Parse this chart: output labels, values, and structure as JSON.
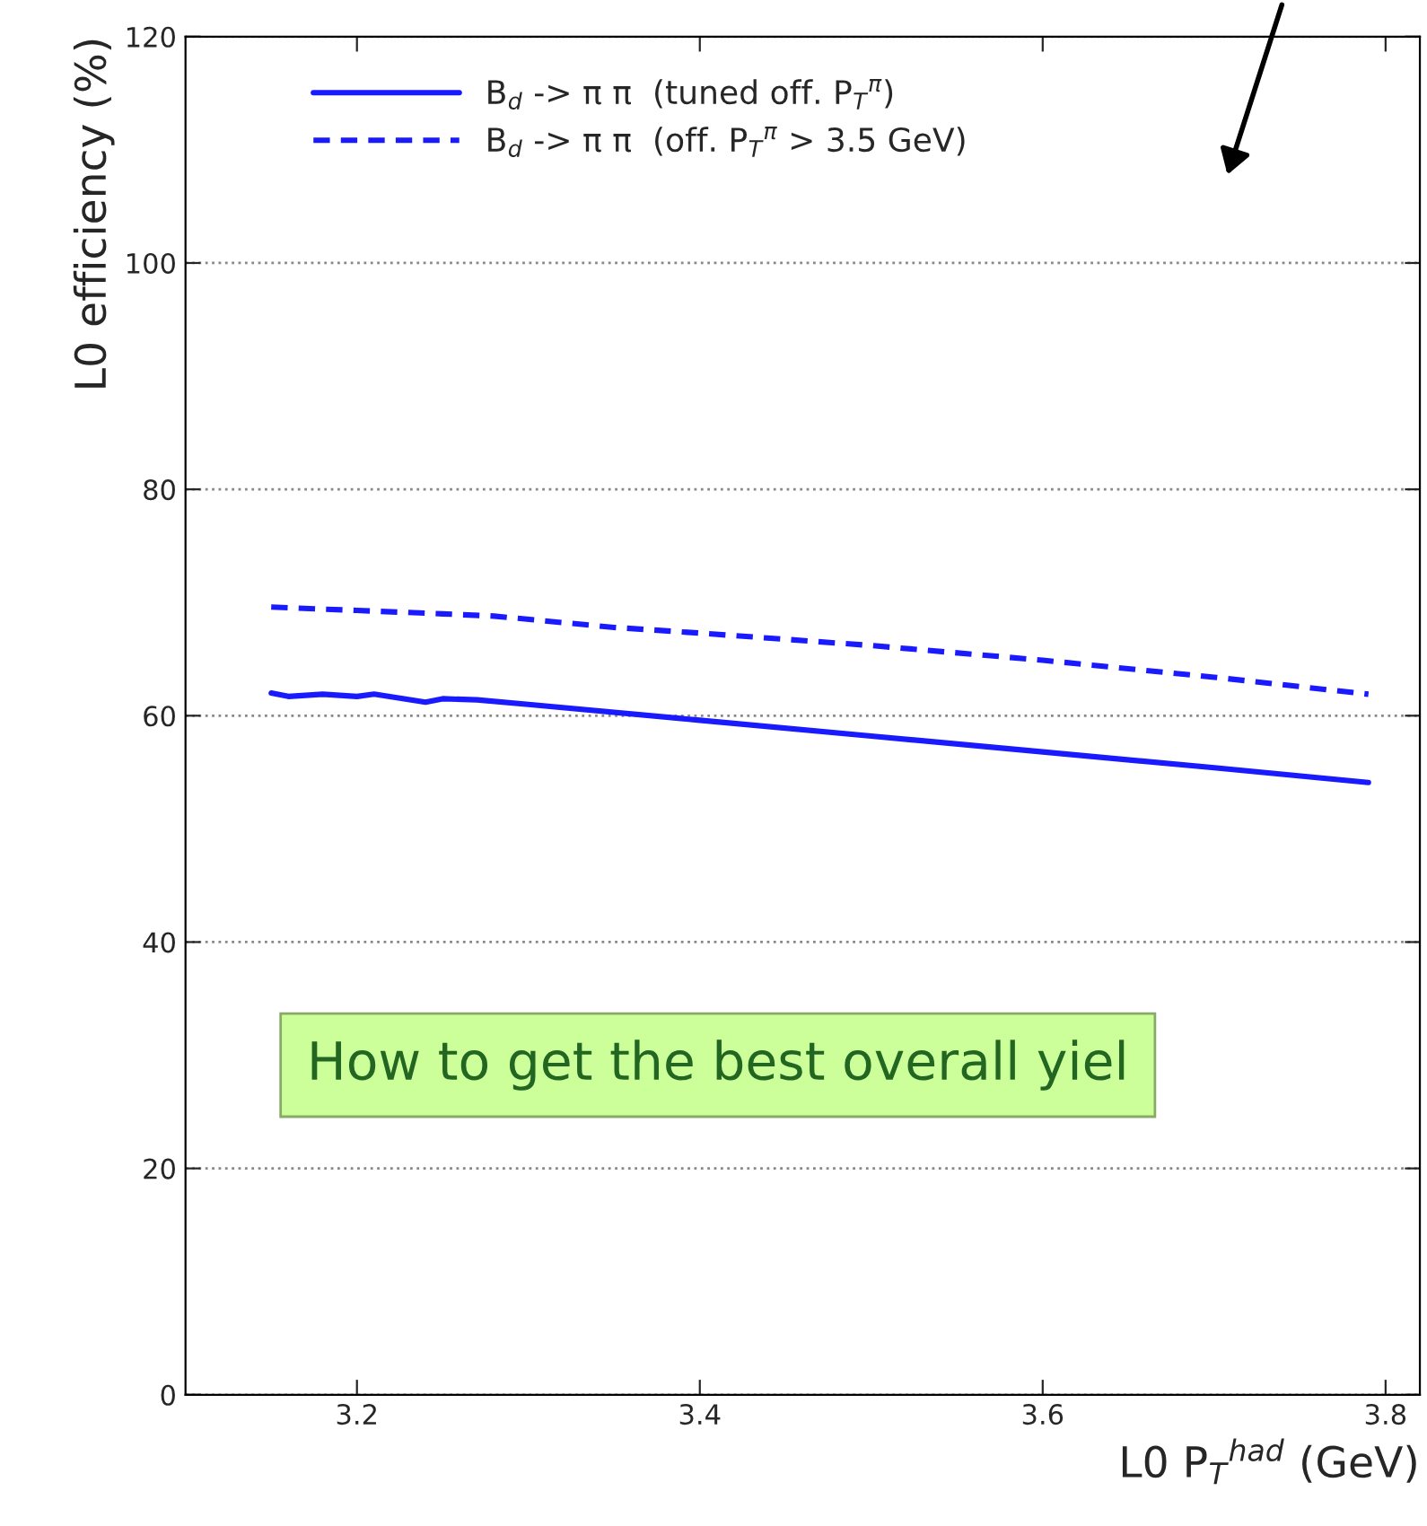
{
  "chart_data": {
    "type": "line",
    "xlabel": "L0 P$_{T}$$^{had}$ (GeV)",
    "ylabel": "L0 efficiency (%)",
    "series": [
      {
        "name": "B$_{d}$ -> π π  (tuned off. P$_{T}$$^{π}$)",
        "color": "#1a1aff",
        "line_style": "solid",
        "x": [
          3.15,
          3.16,
          3.18,
          3.2,
          3.21,
          3.24,
          3.25,
          3.27,
          3.3,
          3.4,
          3.5,
          3.6,
          3.7,
          3.79
        ],
        "values": [
          62,
          61.7,
          61.9,
          61.7,
          61.9,
          61.2,
          61.5,
          61.4,
          61,
          59.6,
          58.2,
          56.8,
          55.4,
          54.1
        ]
      },
      {
        "name": "B$_{d}$ -> π π  (off. P$_{T}$$^{π}$ > 3.5 GeV)",
        "color": "#1a1aff",
        "line_style": "dashed",
        "x": [
          3.15,
          3.2,
          3.25,
          3.28,
          3.35,
          3.4,
          3.5,
          3.6,
          3.7,
          3.79
        ],
        "values": [
          69.6,
          69.3,
          69,
          68.8,
          67.8,
          67.3,
          66.2,
          64.9,
          63.4,
          61.9
        ]
      }
    ],
    "xlim": [
      3.1,
      3.82
    ],
    "xticks": [
      3.2,
      3.4,
      3.6,
      3.8
    ],
    "ylim": [
      0,
      120
    ],
    "yticks": [
      0,
      20,
      40,
      60,
      80,
      100,
      120
    ],
    "grid": "y",
    "legend": "top left",
    "marker": "none",
    "annotations": [
      "How to get the best overall yiel"
    ]
  }
}
